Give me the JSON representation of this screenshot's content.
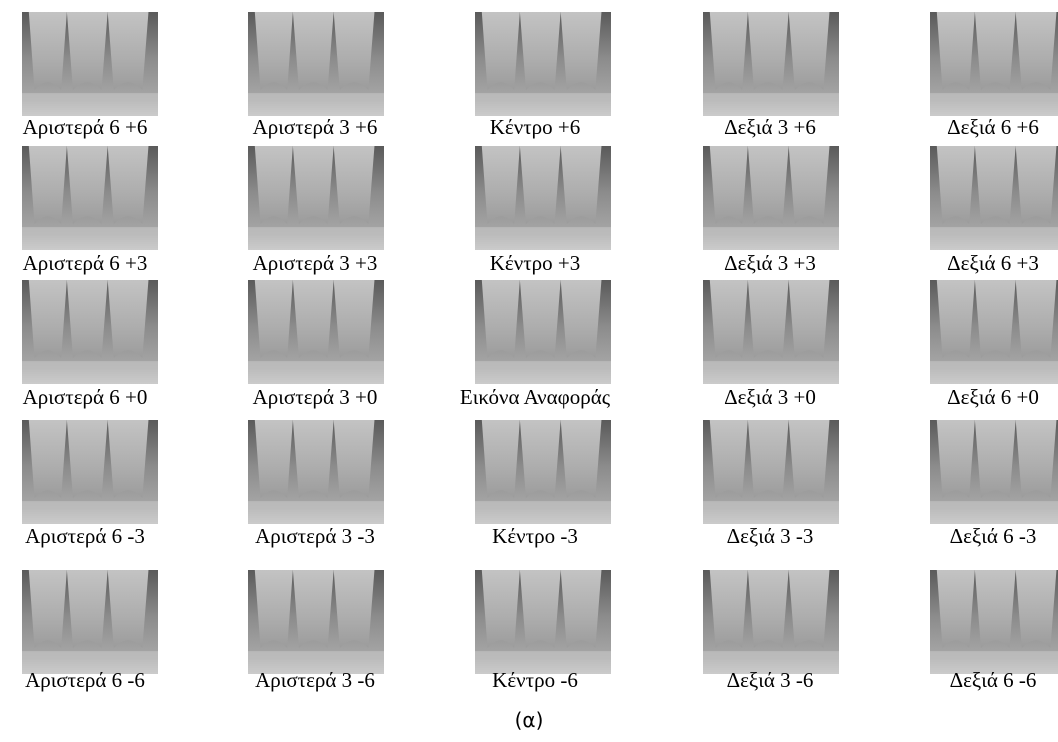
{
  "figure": {
    "rows": [
      [
        "Αριστερά 6 +6",
        "Αριστερά 3 +6",
        "Κέντρο +6",
        "Δεξιά 3 +6",
        "Δεξιά 6 +6"
      ],
      [
        "Αριστερά 6 +3",
        "Αριστερά 3 +3",
        "Κέντρο +3",
        "Δεξιά 3 +3",
        "Δεξιά 6 +3"
      ],
      [
        "Αριστερά 6 +0",
        "Αριστερά 3 +0",
        "Εικόνα Αναφοράς",
        "Δεξιά 3 +0",
        "Δεξιά 6 +0"
      ],
      [
        "Αριστερά 6 -3",
        "Αριστερά 3 -3",
        "Κέντρο -3",
        "Δεξιά 3 -3",
        "Δεξιά 6 -3"
      ],
      [
        "Αριστερά 6 -6",
        "Αριστερά 3 -6",
        "Κέντρο -6",
        "Δεξιά 3 -6",
        "Δεξιά 6 -6"
      ]
    ],
    "caption": "(α)"
  }
}
